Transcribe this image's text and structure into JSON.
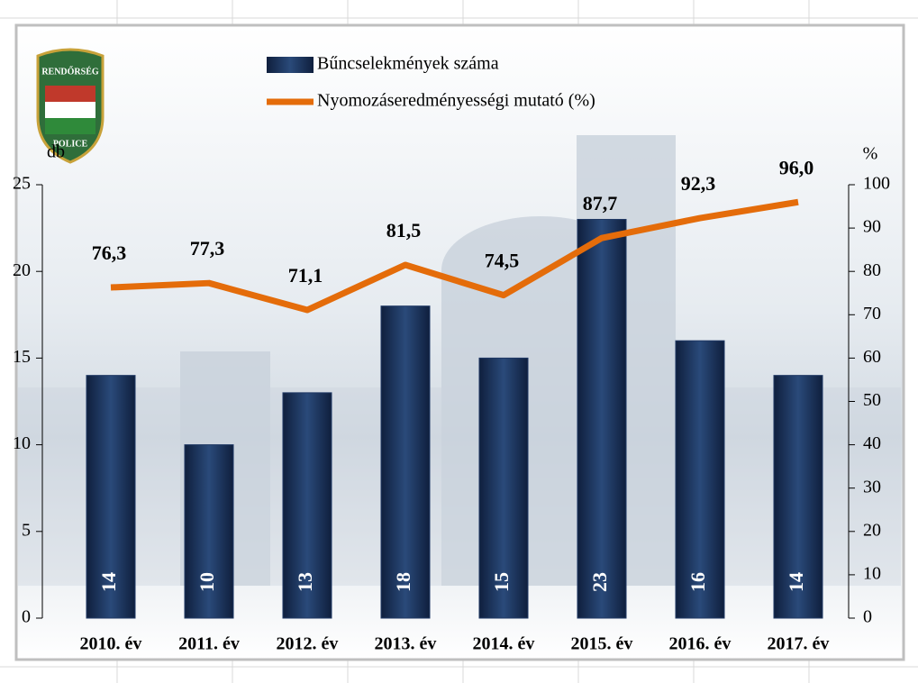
{
  "chart_data": {
    "type": "bar",
    "categories": [
      "2010. év",
      "2011. év",
      "2012. év",
      "2013. év",
      "2014. év",
      "2015. év",
      "2016. év",
      "2017. év"
    ],
    "series": [
      {
        "name": "Bűncselekmények száma",
        "color": "#1f3864",
        "values": [
          14,
          10,
          13,
          18,
          15,
          23,
          16,
          14
        ]
      },
      {
        "name": "Nyomozáseredményességi mutató (%)",
        "type": "line",
        "axis": "y2",
        "color": "#e46c0a",
        "values": [
          76.3,
          77.3,
          71.1,
          81.5,
          74.5,
          87.7,
          92.3,
          96.0
        ],
        "value_labels": [
          "76,3",
          "77,3",
          "71,1",
          "81,5",
          "74,5",
          "87,7",
          "92,3",
          "96,0"
        ]
      }
    ],
    "ylabel": "db",
    "y2label": "%",
    "ylim": [
      0,
      25
    ],
    "yticks": [
      0,
      5,
      10,
      15,
      20,
      25
    ],
    "y2lim": [
      0,
      100
    ],
    "y2ticks": [
      0,
      10,
      20,
      30,
      40,
      50,
      60,
      70,
      80,
      90,
      100
    ]
  }
}
